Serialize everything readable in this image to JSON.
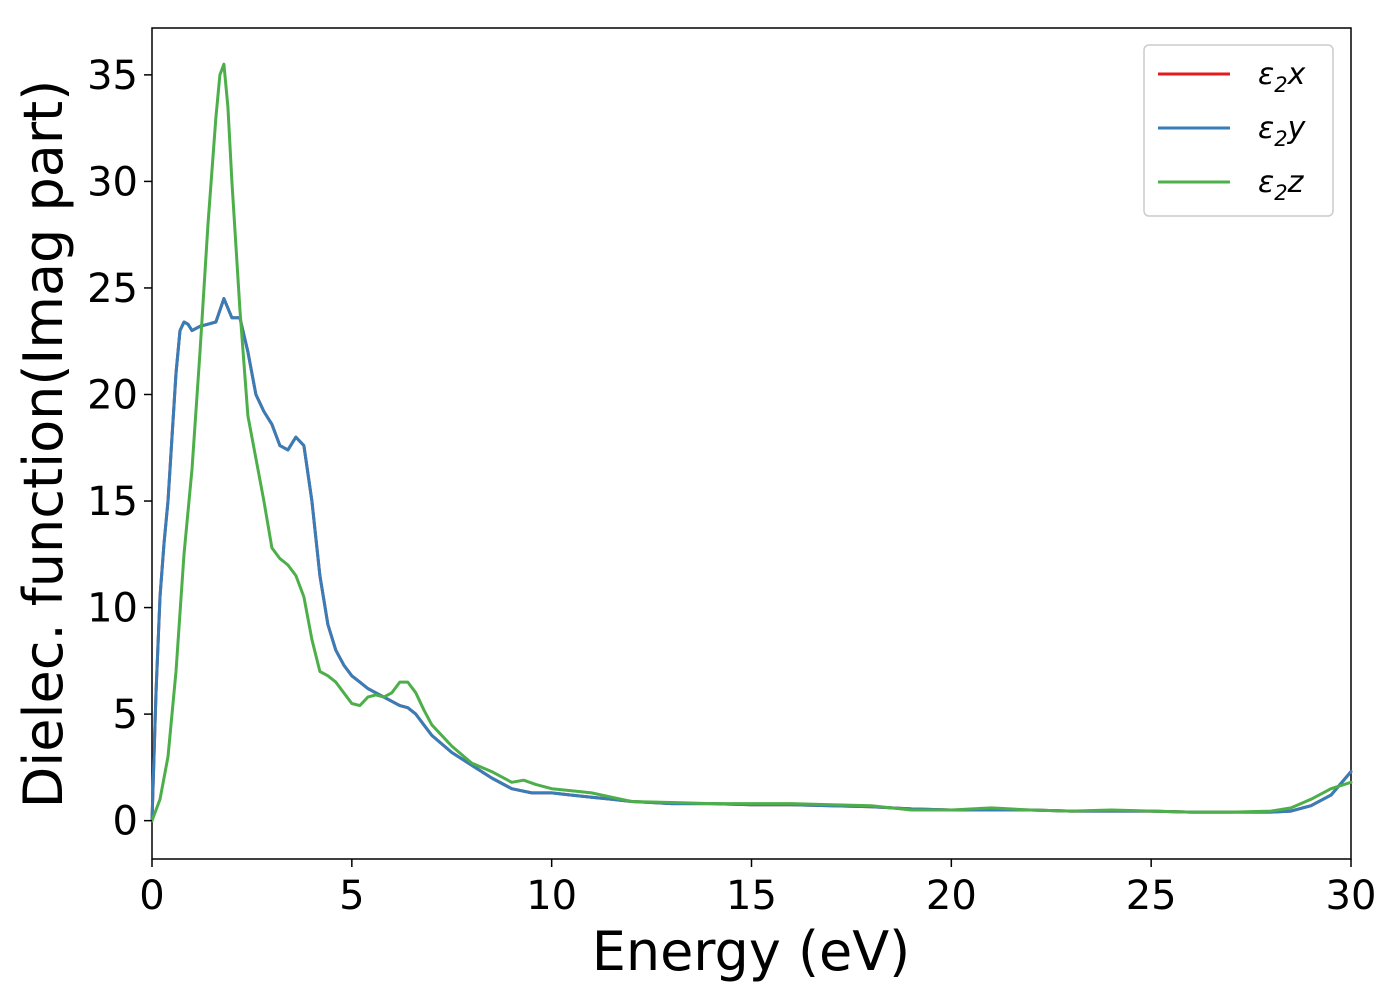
{
  "chart_data": {
    "type": "line",
    "xlabel": "Energy (eV)",
    "ylabel": "Dielec. function(Imag part)",
    "xlim": [
      0,
      30
    ],
    "ylim": [
      -1.8,
      37.2
    ],
    "xticks": [
      0,
      5,
      10,
      15,
      20,
      25,
      30
    ],
    "yticks": [
      0,
      5,
      10,
      15,
      20,
      25,
      30,
      35
    ],
    "grid": false,
    "legend_position": "top-right",
    "series": [
      {
        "name": "ε2x",
        "color": "#e41a1c",
        "x": [
          0,
          0.1,
          0.2,
          0.3,
          0.4,
          0.5,
          0.6,
          0.7,
          0.8,
          0.9,
          1.0,
          1.2,
          1.4,
          1.6,
          1.8,
          2.0,
          2.2,
          2.4,
          2.6,
          2.8,
          3.0,
          3.2,
          3.4,
          3.6,
          3.8,
          4.0,
          4.2,
          4.4,
          4.6,
          4.8,
          5.0,
          5.2,
          5.4,
          5.6,
          5.8,
          6.0,
          6.2,
          6.4,
          6.6,
          6.8,
          7.0,
          7.5,
          8.0,
          8.5,
          9.0,
          9.5,
          10.0,
          10.5,
          11.0,
          11.5,
          12.0,
          13.0,
          14.0,
          15.0,
          16.0,
          17.0,
          18.0,
          19.0,
          20.0,
          21.0,
          22.0,
          23.0,
          24.0,
          25.0,
          26.0,
          27.0,
          28.0,
          28.5,
          29.0,
          29.5,
          30.0
        ],
        "y": [
          0,
          6.0,
          10.5,
          13.0,
          15.0,
          18.0,
          21.0,
          23.0,
          23.4,
          23.3,
          23.0,
          23.2,
          23.3,
          23.4,
          24.5,
          23.6,
          23.6,
          22.0,
          20.0,
          19.2,
          18.6,
          17.6,
          17.4,
          18.0,
          17.6,
          15.0,
          11.5,
          9.2,
          8.0,
          7.3,
          6.8,
          6.5,
          6.2,
          6.0,
          5.8,
          5.6,
          5.4,
          5.3,
          5.0,
          4.5,
          4.0,
          3.2,
          2.6,
          2.0,
          1.5,
          1.3,
          1.3,
          1.2,
          1.1,
          1.0,
          0.9,
          0.8,
          0.8,
          0.75,
          0.75,
          0.7,
          0.65,
          0.55,
          0.5,
          0.5,
          0.5,
          0.45,
          0.45,
          0.45,
          0.4,
          0.4,
          0.4,
          0.45,
          0.7,
          1.2,
          2.3
        ]
      },
      {
        "name": "ε2y",
        "color": "#377eb8",
        "x": [
          0,
          0.1,
          0.2,
          0.3,
          0.4,
          0.5,
          0.6,
          0.7,
          0.8,
          0.9,
          1.0,
          1.2,
          1.4,
          1.6,
          1.8,
          2.0,
          2.2,
          2.4,
          2.6,
          2.8,
          3.0,
          3.2,
          3.4,
          3.6,
          3.8,
          4.0,
          4.2,
          4.4,
          4.6,
          4.8,
          5.0,
          5.2,
          5.4,
          5.6,
          5.8,
          6.0,
          6.2,
          6.4,
          6.6,
          6.8,
          7.0,
          7.5,
          8.0,
          8.5,
          9.0,
          9.5,
          10.0,
          10.5,
          11.0,
          11.5,
          12.0,
          13.0,
          14.0,
          15.0,
          16.0,
          17.0,
          18.0,
          19.0,
          20.0,
          21.0,
          22.0,
          23.0,
          24.0,
          25.0,
          26.0,
          27.0,
          28.0,
          28.5,
          29.0,
          29.5,
          30.0
        ],
        "y": [
          0,
          6.0,
          10.5,
          13.0,
          15.0,
          18.0,
          21.0,
          23.0,
          23.4,
          23.3,
          23.0,
          23.2,
          23.3,
          23.4,
          24.5,
          23.6,
          23.6,
          22.0,
          20.0,
          19.2,
          18.6,
          17.6,
          17.4,
          18.0,
          17.6,
          15.0,
          11.5,
          9.2,
          8.0,
          7.3,
          6.8,
          6.5,
          6.2,
          6.0,
          5.8,
          5.6,
          5.4,
          5.3,
          5.0,
          4.5,
          4.0,
          3.2,
          2.6,
          2.0,
          1.5,
          1.3,
          1.3,
          1.2,
          1.1,
          1.0,
          0.9,
          0.8,
          0.8,
          0.75,
          0.75,
          0.7,
          0.65,
          0.55,
          0.5,
          0.5,
          0.5,
          0.45,
          0.45,
          0.45,
          0.4,
          0.4,
          0.4,
          0.45,
          0.7,
          1.2,
          2.3
        ]
      },
      {
        "name": "ε2z",
        "color": "#4daf4a",
        "x": [
          0,
          0.2,
          0.4,
          0.6,
          0.8,
          1.0,
          1.2,
          1.4,
          1.6,
          1.7,
          1.8,
          1.9,
          2.0,
          2.2,
          2.4,
          2.6,
          2.8,
          3.0,
          3.2,
          3.4,
          3.6,
          3.8,
          4.0,
          4.2,
          4.4,
          4.6,
          4.8,
          5.0,
          5.2,
          5.4,
          5.6,
          5.8,
          6.0,
          6.2,
          6.4,
          6.6,
          6.8,
          7.0,
          7.5,
          8.0,
          8.5,
          9.0,
          9.3,
          9.6,
          10.0,
          10.5,
          11.0,
          11.5,
          12.0,
          13.0,
          14.0,
          15.0,
          16.0,
          17.0,
          18.0,
          19.0,
          20.0,
          21.0,
          22.0,
          23.0,
          24.0,
          25.0,
          26.0,
          27.0,
          28.0,
          28.5,
          29.0,
          29.5,
          30.0
        ],
        "y": [
          0,
          1.0,
          3.0,
          7.0,
          12.5,
          16.5,
          22.0,
          28.0,
          33.0,
          35.0,
          35.5,
          33.5,
          30.0,
          24.0,
          19.0,
          17.0,
          15.0,
          12.8,
          12.3,
          12.0,
          11.5,
          10.5,
          8.5,
          7.0,
          6.8,
          6.5,
          6.0,
          5.5,
          5.4,
          5.8,
          5.9,
          5.8,
          6.0,
          6.5,
          6.5,
          6.0,
          5.2,
          4.5,
          3.5,
          2.7,
          2.3,
          1.8,
          1.9,
          1.7,
          1.5,
          1.4,
          1.3,
          1.1,
          0.9,
          0.85,
          0.8,
          0.8,
          0.8,
          0.75,
          0.7,
          0.5,
          0.5,
          0.6,
          0.5,
          0.45,
          0.5,
          0.45,
          0.4,
          0.4,
          0.45,
          0.6,
          1.0,
          1.5,
          1.8
        ]
      }
    ]
  }
}
